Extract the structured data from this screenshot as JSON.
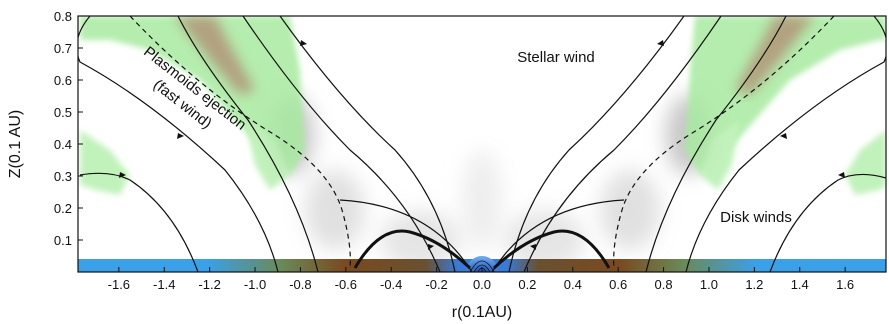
{
  "axes": {
    "xlabel": "r(0.1AU)",
    "ylabel": "Z(0.1 AU)",
    "xlim": [
      -1.78,
      1.78
    ],
    "ylim": [
      0.0,
      0.8
    ],
    "xticks": [
      -1.6,
      -1.4,
      -1.2,
      -1.0,
      -0.8,
      -0.6,
      -0.4,
      -0.2,
      0.0,
      0.2,
      0.4,
      0.6,
      0.8,
      1.0,
      1.2,
      1.4,
      1.6
    ],
    "xtick_labels": [
      "-1.6",
      "-1.4",
      "-1.2",
      "-1.0",
      "-0.8",
      "-0.6",
      "-0.4",
      "-0.2",
      "0.0",
      "0.2",
      "0.4",
      "0.6",
      "0.8",
      "1.0",
      "1.2",
      "1.4",
      "1.6"
    ],
    "yticks": [
      0.1,
      0.2,
      0.3,
      0.4,
      0.5,
      0.6,
      0.7,
      0.8
    ],
    "ytick_labels": [
      "0.1",
      "0.2",
      "0.3",
      "0.4",
      "0.5",
      "0.6",
      "0.7",
      "0.8"
    ]
  },
  "annotations": {
    "stellar_wind": "Stellar wind",
    "disk_winds": "Disk winds",
    "plasmoids_line1": "Plasmoids ejection",
    "plasmoids_line2": "(fast wind)"
  },
  "colors": {
    "field_lines": "#111111",
    "disk_inner": "#3aa0e8",
    "disk_mid": "#8a5a2a",
    "plasmoid_region": "#a8eaa0",
    "dense_flow": "#b07060"
  }
}
